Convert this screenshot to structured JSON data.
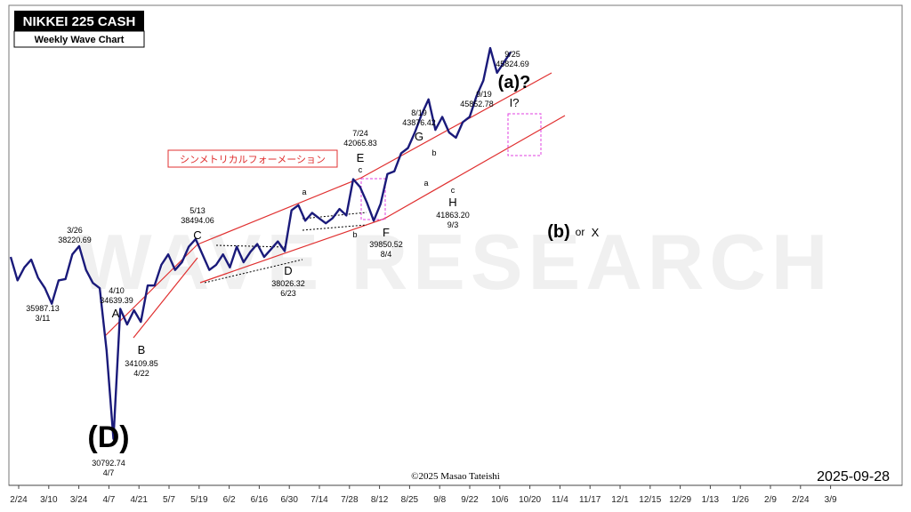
{
  "header": {
    "title": "NIKKEI 225 CASH",
    "subtitle": "Weekly Wave Chart"
  },
  "date_stamp": "2025-09-28",
  "copyright": "©2025 Masao Tateishi",
  "watermark": "WAVE RESEARCH",
  "pattern_label": "シンメトリカルフォーメーション",
  "colors": {
    "price_line": "#1a1a7a",
    "channel": "#e03030",
    "box": "#e040e0",
    "label_border": "#e03030"
  },
  "chart_data": {
    "type": "line",
    "x_ticks": [
      "2/24",
      "3/10",
      "3/24",
      "4/7",
      "4/21",
      "5/7",
      "5/19",
      "6/2",
      "6/16",
      "6/30",
      "7/14",
      "7/28",
      "8/12",
      "8/25",
      "9/8",
      "9/22",
      "10/6",
      "10/20",
      "11/4",
      "11/17",
      "12/1",
      "12/15",
      "12/29",
      "1/13",
      "1/26",
      "2/9",
      "2/24",
      "3/9"
    ],
    "ylim": [
      29000,
      47500
    ],
    "series": [
      {
        "values": [
          37800,
          36900,
          37400,
          37700,
          37000,
          36600,
          36000,
          36900,
          36950,
          37900,
          38220,
          37300,
          36800,
          36600,
          34200,
          30792,
          35800,
          35200,
          35750,
          35300,
          36700,
          36700,
          37500,
          37900,
          37300,
          37600,
          38200,
          38494,
          37900,
          37300,
          37500,
          37900,
          37400,
          38200,
          37600,
          38000,
          38300,
          37800,
          38100,
          38400,
          38026,
          39600,
          39800,
          39200,
          39500,
          39300,
          39100,
          39300,
          39650,
          39400,
          40800,
          40500,
          39900,
          39200,
          39850.52,
          41000,
          41100,
          41800,
          42000,
          42600,
          43300,
          43876.42,
          42700,
          43200,
          42600,
          42400,
          43000,
          43200,
          44000,
          44600,
          45852.78,
          44900,
          45300,
          45700
        ]
      }
    ],
    "waves": [
      {
        "text": "(D)",
        "price": "30792.74",
        "date": "4/7"
      },
      {
        "text": "A",
        "price": "34639.39",
        "date": "4/10"
      },
      {
        "text": "B",
        "price": "34109.85",
        "date": "4/22"
      },
      {
        "text": "C",
        "price": "38494.06",
        "date": "5/13"
      },
      {
        "text": "D",
        "price": "38026.32",
        "date": "6/23"
      },
      {
        "text": "E",
        "sub": "c",
        "price": "42065.83",
        "date": "7/24"
      },
      {
        "text": "F",
        "price": "39850.52",
        "date": "8/4"
      },
      {
        "text": "G",
        "price": "43876.42",
        "date": "8/19"
      },
      {
        "text": "H",
        "sub": "c",
        "price": "41863.20",
        "date": "9/3"
      },
      {
        "text": "I?",
        "price": "45852.78",
        "date": "9/19"
      }
    ],
    "other_labels": {
      "prev_low_price": "35987.13",
      "prev_low_date": "3/11",
      "prev_high_price": "38220.69",
      "prev_high_date": "3/26",
      "target_price": "45824.69",
      "target_date": "9/25",
      "a_q": "(a)?",
      "b_label": "(b)",
      "or_word": "or",
      "x_word": "X",
      "sub_a1": "a",
      "sub_b1": "b",
      "sub_a2": "a",
      "sub_b2": "b"
    }
  }
}
